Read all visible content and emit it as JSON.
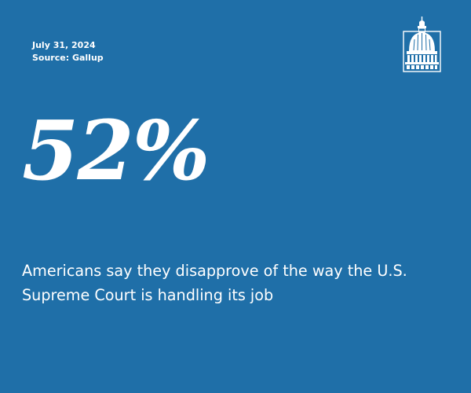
{
  "header": {
    "date": "July 31, 2024",
    "source": "Source: Gallup"
  },
  "logo": {
    "icon": "capitol-dome-icon"
  },
  "stat": {
    "value": "52%",
    "statement": "Americans say they disapprove of the way the U.S. Supreme Court is handling its job"
  },
  "colors": {
    "background": "#1f6fa8",
    "text": "#ffffff"
  }
}
